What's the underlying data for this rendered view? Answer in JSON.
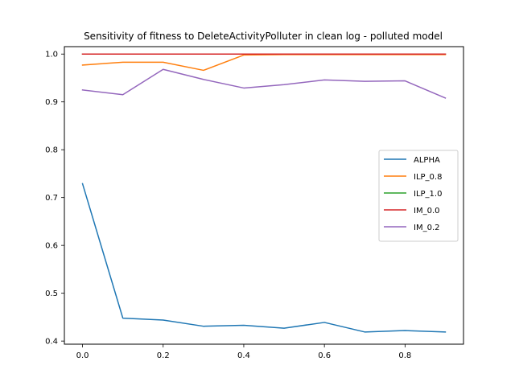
{
  "chart_data": {
    "type": "line",
    "title": "Sensitivity of fitness to DeleteActivityPolluter in clean log - polluted model",
    "xlabel": "",
    "ylabel": "",
    "x": [
      0.0,
      0.1,
      0.2,
      0.3,
      0.4,
      0.5,
      0.6,
      0.7,
      0.8,
      0.9
    ],
    "xlim": [
      -0.045,
      0.945
    ],
    "ylim": [
      0.3935,
      1.0155
    ],
    "xticks": [
      0.0,
      0.2,
      0.4,
      0.6,
      0.8
    ],
    "xtick_labels": [
      "0.0",
      "0.2",
      "0.4",
      "0.6",
      "0.8"
    ],
    "yticks": [
      0.4,
      0.5,
      0.6,
      0.7,
      0.8,
      0.9,
      1.0
    ],
    "ytick_labels": [
      "0.4",
      "0.5",
      "0.6",
      "0.7",
      "0.8",
      "0.9",
      "1.0"
    ],
    "grid": false,
    "legend_position": "center-right",
    "series": [
      {
        "name": "ALPHA",
        "color": "#1f77b4",
        "values": [
          0.729,
          0.448,
          0.444,
          0.431,
          0.433,
          0.427,
          0.439,
          0.419,
          0.422,
          0.419
        ]
      },
      {
        "name": "ILP_0.8",
        "color": "#ff7f0e",
        "values": [
          0.977,
          0.983,
          0.983,
          0.966,
          0.998,
          0.999,
          0.999,
          0.999,
          0.999,
          0.999
        ]
      },
      {
        "name": "ILP_1.0",
        "color": "#2ca02c",
        "values": [
          1.0,
          1.0,
          1.0,
          1.0,
          1.0,
          1.0,
          1.0,
          1.0,
          1.0,
          1.0
        ]
      },
      {
        "name": "IM_0.0",
        "color": "#d62728",
        "values": [
          1.0,
          1.0,
          1.0,
          1.0,
          1.0,
          1.0,
          1.0,
          1.0,
          1.0,
          1.0
        ]
      },
      {
        "name": "IM_0.2",
        "color": "#9467bd",
        "values": [
          0.925,
          0.915,
          0.968,
          0.947,
          0.929,
          0.936,
          0.946,
          0.943,
          0.944,
          0.908
        ]
      }
    ]
  }
}
